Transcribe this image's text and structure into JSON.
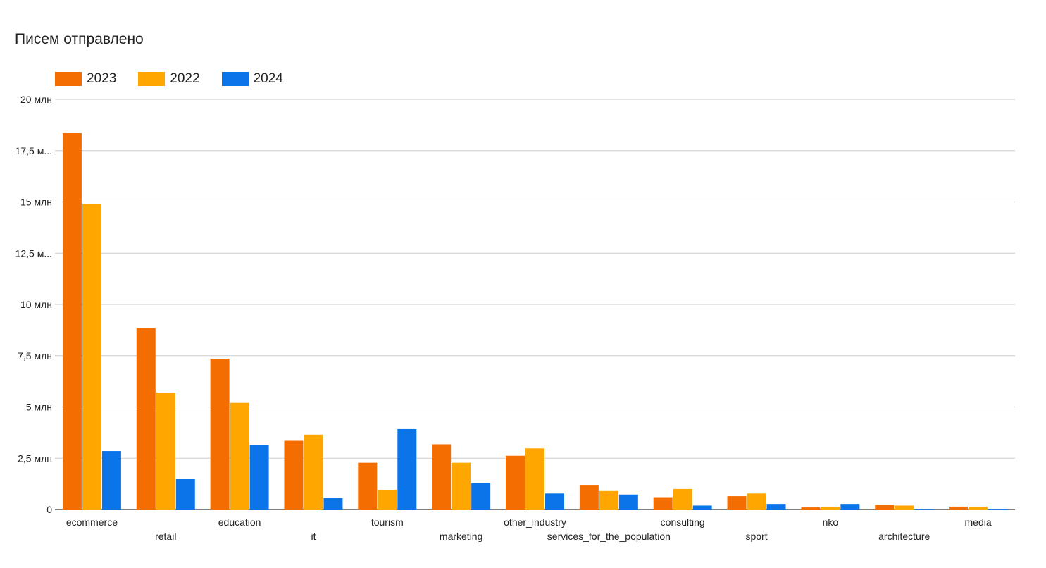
{
  "chart_data": {
    "type": "bar",
    "title": "Писем отправлено",
    "xlabel": "",
    "ylabel": "",
    "ylim": [
      0,
      20000000
    ],
    "y_ticks": [
      0,
      2500000,
      5000000,
      7500000,
      10000000,
      12500000,
      15000000,
      17500000,
      20000000
    ],
    "y_tick_labels": [
      "0",
      "2,5 млн",
      "5 млн",
      "7,5 млн",
      "10 млн",
      "12,5 м...",
      "15 млн",
      "17,5 м...",
      "20 млн"
    ],
    "grid": true,
    "legend_position": "top-left",
    "categories": [
      "ecommerce",
      "retail",
      "education",
      "it",
      "tourism",
      "marketing",
      "other_industry",
      "services_for_the_population",
      "consulting",
      "sport",
      "nko",
      "architecture",
      "media"
    ],
    "series": [
      {
        "name": "2023",
        "color": "#f46d00",
        "values": [
          18350000,
          8850000,
          7350000,
          3350000,
          2280000,
          3180000,
          2620000,
          1200000,
          600000,
          650000,
          100000,
          230000,
          140000
        ]
      },
      {
        "name": "2022",
        "color": "#ffa600",
        "values": [
          14900000,
          5700000,
          5200000,
          3650000,
          950000,
          2280000,
          2980000,
          900000,
          1000000,
          780000,
          110000,
          190000,
          140000
        ]
      },
      {
        "name": "2024",
        "color": "#0a74e8",
        "values": [
          2850000,
          1480000,
          3150000,
          560000,
          3920000,
          1300000,
          780000,
          730000,
          190000,
          270000,
          270000,
          30000,
          30000
        ]
      }
    ]
  }
}
